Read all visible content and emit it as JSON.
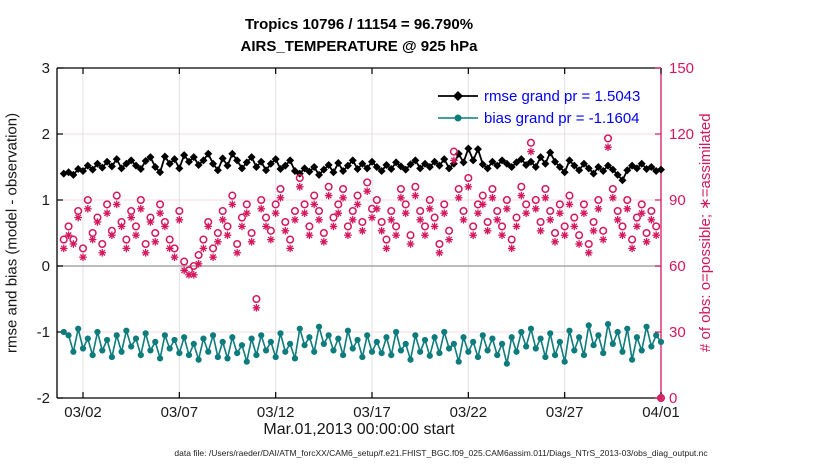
{
  "title": {
    "line1": "Tropics 10796 / 11154 = 96.790%",
    "line2": "AIRS_TEMPERATURE @ 925 hPa"
  },
  "footer": "data file: /Users/raeder/DAI/ATM_forcXX/CAM6_setup/f.e21.FHIST_BGC.f09_025.CAM6assim.011/Diags_NTrS_2013-03/obs_diag_output.nc",
  "colors": {
    "rmse": "#000000",
    "bias": "#0e7c7c",
    "obs": "#d5185e",
    "legend_text": "#0000ff",
    "zero_line": "#a6a6a6",
    "grid_h": "#f2dbe2",
    "grid_v": "#e3e0e1",
    "tick_text": "#1a1a1a"
  },
  "chart_data": {
    "type": "line",
    "title": "Tropics 10796 / 11154 = 96.790%",
    "subtitle": "AIRS_TEMPERATURE @ 925 hPa",
    "xlabel": "Mar.01,2013 00:00:00 start",
    "ylabel_left": "rmse and bias (model - observation)",
    "ylabel_right": "# of obs: o=possible; ∗=assimilated",
    "ylim_left": [
      -2,
      3
    ],
    "ylim_right": [
      0,
      150
    ],
    "yticks_left": [
      -2,
      -1,
      0,
      1,
      2,
      3
    ],
    "yticks_right": [
      0,
      30,
      60,
      90,
      120,
      150
    ],
    "xtick_labels": [
      "03/02",
      "03/07",
      "03/12",
      "03/17",
      "03/22",
      "03/27",
      "04/01"
    ],
    "xtick_days": [
      1,
      6,
      11,
      16,
      21,
      26,
      31
    ],
    "xlim_days": [
      -0.35,
      31
    ],
    "x_start_day": 0.0,
    "x_step_days": 0.25,
    "grid": true,
    "legend_position": "top-right-inside",
    "legend": [
      {
        "label": "rmse grand pr = 1.5043",
        "color": "#000000",
        "marker": "diamond"
      },
      {
        "label": "bias grand pr = -1.1604",
        "color": "#0e7c7c",
        "marker": "circle"
      }
    ],
    "grand_rmse": 1.5043,
    "grand_bias": -1.1604,
    "series": [
      {
        "name": "rmse",
        "axis": "left",
        "marker": "diamond",
        "line": true,
        "color": "#000000",
        "values": [
          1.4,
          1.42,
          1.38,
          1.47,
          1.44,
          1.52,
          1.46,
          1.55,
          1.49,
          1.58,
          1.51,
          1.62,
          1.48,
          1.55,
          1.6,
          1.52,
          1.47,
          1.59,
          1.65,
          1.5,
          1.42,
          1.66,
          1.55,
          1.62,
          1.48,
          1.68,
          1.58,
          1.65,
          1.53,
          1.6,
          1.7,
          1.55,
          1.45,
          1.63,
          1.52,
          1.7,
          1.6,
          1.48,
          1.57,
          1.65,
          1.5,
          1.58,
          1.45,
          1.55,
          1.62,
          1.47,
          1.52,
          1.6,
          1.44,
          1.4,
          1.48,
          1.43,
          1.5,
          1.38,
          1.46,
          1.53,
          1.42,
          1.56,
          1.44,
          1.52,
          1.6,
          1.47,
          1.55,
          1.48,
          1.58,
          1.5,
          1.44,
          1.53,
          1.47,
          1.57,
          1.51,
          1.46,
          1.54,
          1.6,
          1.48,
          1.55,
          1.5,
          1.58,
          1.52,
          1.62,
          1.48,
          1.55,
          1.7,
          1.57,
          1.78,
          1.6,
          1.77,
          1.54,
          1.48,
          1.58,
          1.52,
          1.6,
          1.55,
          1.5,
          1.57,
          1.62,
          1.53,
          1.58,
          1.5,
          1.65,
          1.55,
          1.72,
          1.58,
          1.5,
          1.42,
          1.6,
          1.52,
          1.45,
          1.55,
          1.48,
          1.4,
          1.5,
          1.44,
          1.52,
          1.46,
          1.38,
          1.3,
          1.45,
          1.52,
          1.48,
          1.55,
          1.47,
          1.5,
          1.44,
          1.46
        ]
      },
      {
        "name": "bias",
        "axis": "left",
        "marker": "circle",
        "line": true,
        "color": "#0e7c7c",
        "values": [
          -1.0,
          -1.05,
          -1.3,
          -0.95,
          -1.25,
          -1.1,
          -1.35,
          -1.0,
          -1.28,
          -1.12,
          -1.38,
          -1.05,
          -1.3,
          -0.98,
          -1.22,
          -1.1,
          -1.35,
          -1.02,
          -1.28,
          -1.15,
          -1.4,
          -1.05,
          -1.25,
          -1.12,
          -1.32,
          -1.08,
          -1.35,
          -1.18,
          -1.42,
          -1.1,
          -1.3,
          -1.05,
          -1.38,
          -1.15,
          -1.4,
          -1.08,
          -1.32,
          -1.2,
          -1.45,
          -1.1,
          -1.35,
          -1.05,
          -1.28,
          -1.15,
          -1.38,
          -1.02,
          -1.3,
          -1.18,
          -1.4,
          -0.95,
          -1.2,
          -1.08,
          -1.3,
          -0.92,
          -1.18,
          -1.05,
          -1.28,
          -1.1,
          -1.35,
          -0.98,
          -1.25,
          -1.12,
          -1.38,
          -1.05,
          -1.3,
          -1.15,
          -1.32,
          -1.08,
          -1.35,
          -1.0,
          -1.28,
          -1.18,
          -1.42,
          -1.05,
          -1.3,
          -1.12,
          -1.36,
          -1.08,
          -1.32,
          -1.0,
          -1.25,
          -1.18,
          -1.45,
          -1.08,
          -1.3,
          -1.15,
          -1.38,
          -1.05,
          -1.28,
          -1.1,
          -1.35,
          -1.18,
          -1.48,
          -1.08,
          -1.3,
          -1.0,
          -1.22,
          -0.95,
          -1.25,
          -1.1,
          -1.38,
          -1.02,
          -1.35,
          -1.15,
          -1.45,
          -0.98,
          -1.28,
          -1.08,
          -1.35,
          -0.9,
          -1.2,
          -1.05,
          -1.32,
          -0.88,
          -1.18,
          -1.0,
          -1.3,
          -0.95,
          -1.42,
          -1.08,
          -1.28,
          -0.92,
          -1.22,
          -1.05,
          -1.15
        ]
      },
      {
        "name": "possible",
        "axis": "right",
        "marker": "circle-open",
        "line": false,
        "color": "#d5185e",
        "values": [
          72,
          78,
          72,
          85,
          68,
          90,
          75,
          82,
          70,
          88,
          76,
          92,
          80,
          72,
          85,
          78,
          90,
          70,
          82,
          75,
          88,
          80,
          72,
          68,
          85,
          62,
          58,
          60,
          65,
          72,
          80,
          68,
          75,
          85,
          78,
          92,
          70,
          82,
          88,
          75,
          45,
          90,
          82,
          76,
          88,
          95,
          80,
          72,
          85,
          100,
          88,
          78,
          92,
          85,
          75,
          96,
          82,
          88,
          95,
          78,
          85,
          92,
          80,
          98,
          86,
          90,
          80,
          72,
          85,
          78,
          95,
          88,
          74,
          96,
          85,
          78,
          90,
          82,
          70,
          88,
          76,
          112,
          95,
          85,
          100,
          78,
          88,
          92,
          80,
          95,
          85,
          78,
          90,
          72,
          82,
          96,
          88,
          116,
          90,
          80,
          95,
          85,
          75,
          88,
          78,
          92,
          82,
          74,
          88,
          70,
          80,
          90,
          76,
          118,
          95,
          85,
          78,
          90,
          72,
          82,
          88,
          75,
          85,
          78,
          0
        ]
      },
      {
        "name": "assimilated",
        "axis": "right",
        "marker": "asterisk",
        "line": false,
        "color": "#d5185e",
        "values": [
          68,
          74,
          70,
          82,
          64,
          86,
          72,
          80,
          66,
          84,
          74,
          88,
          78,
          68,
          82,
          74,
          86,
          66,
          80,
          71,
          84,
          78,
          68,
          64,
          81,
          58,
          56,
          56,
          61,
          68,
          78,
          64,
          71,
          81,
          74,
          88,
          66,
          78,
          84,
          71,
          41,
          86,
          78,
          72,
          84,
          91,
          76,
          68,
          81,
          96,
          84,
          74,
          88,
          81,
          71,
          92,
          78,
          84,
          91,
          74,
          81,
          88,
          76,
          94,
          82,
          86,
          76,
          68,
          81,
          74,
          91,
          84,
          70,
          92,
          81,
          74,
          86,
          78,
          66,
          84,
          72,
          108,
          91,
          81,
          96,
          74,
          84,
          88,
          76,
          91,
          81,
          74,
          86,
          68,
          78,
          92,
          84,
          112,
          86,
          76,
          91,
          81,
          71,
          84,
          74,
          88,
          78,
          70,
          84,
          66,
          76,
          86,
          72,
          114,
          91,
          81,
          74,
          86,
          68,
          78,
          84,
          71,
          81,
          74,
          0
        ]
      }
    ]
  }
}
